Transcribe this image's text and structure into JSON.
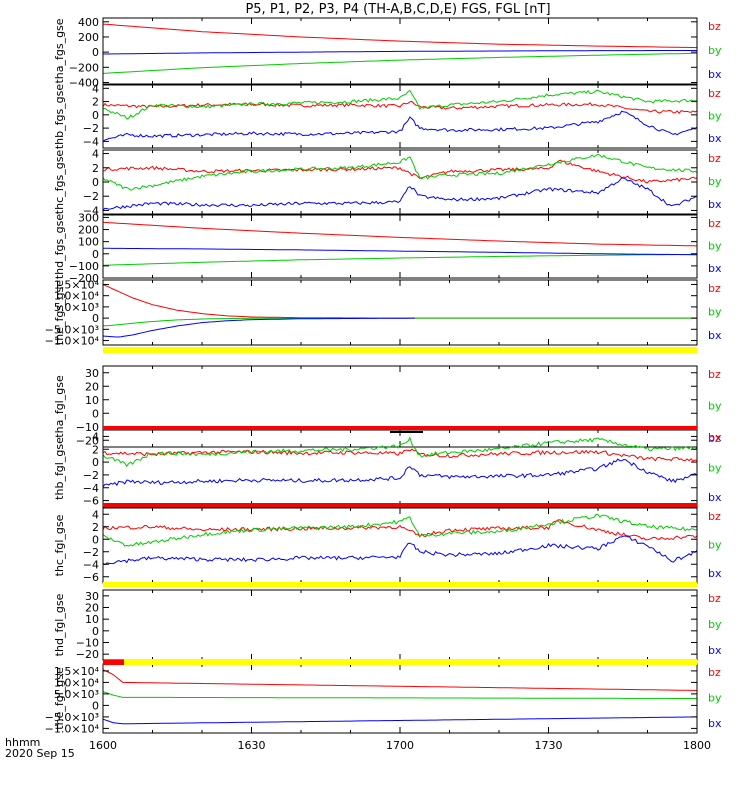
{
  "title": "P5, P1, P2, P3, P4 (TH-A,B,C,D,E) FGS, FGL [nT]",
  "footer": {
    "xunit": "hhmm",
    "date": "2020 Sep 15"
  },
  "x_ticks": [
    "1600",
    "1630",
    "1700",
    "1730",
    "1800"
  ],
  "colors": {
    "bx": "#0000ff",
    "by": "#00cc00",
    "bz": "#ff0000",
    "frame": "#000000",
    "flag_yellow": "#ffff00",
    "flag_red": "#ff0000"
  },
  "chart_data": [
    {
      "type": "line",
      "ylabel": "tha_fgs_gse",
      "xlim": [
        0,
        120
      ],
      "ylim": [
        -420,
        450
      ],
      "yticks": [
        "400",
        "200",
        "0",
        "−200",
        "−400"
      ],
      "ytick_values": [
        400,
        200,
        0,
        -200,
        -400
      ],
      "legend": [
        "bz",
        "by",
        "bx"
      ],
      "legend_placement": "right",
      "series": [
        {
          "name": "bz",
          "x": [
            0,
            20,
            40,
            60,
            80,
            100,
            120
          ],
          "values": [
            370,
            270,
            200,
            145,
            105,
            80,
            60
          ]
        },
        {
          "name": "by",
          "x": [
            0,
            20,
            40,
            60,
            80,
            100,
            120
          ],
          "values": [
            -280,
            -205,
            -150,
            -105,
            -70,
            -40,
            -15
          ]
        },
        {
          "name": "bx",
          "x": [
            0,
            20,
            40,
            60,
            80,
            100,
            120
          ],
          "values": [
            -25,
            -10,
            0,
            10,
            15,
            20,
            22
          ]
        }
      ]
    },
    {
      "type": "line",
      "ylabel": "thb_fgs_gse",
      "xlim": [
        0,
        120
      ],
      "ylim": [
        -5,
        4.5
      ],
      "yticks": [
        "4",
        "2",
        "0",
        "−2",
        "−4"
      ],
      "ytick_values": [
        4,
        2,
        0,
        -2,
        -4
      ],
      "legend": [
        "bz",
        "by",
        "bx"
      ],
      "legend_placement": "right",
      "series": [
        {
          "name": "bz",
          "x": [
            0,
            10,
            20,
            30,
            40,
            50,
            60,
            62,
            64,
            70,
            80,
            90,
            100,
            110,
            120
          ],
          "values": [
            1.5,
            1.2,
            1.5,
            1.6,
            1.4,
            1.5,
            1.3,
            2.0,
            1.2,
            1.0,
            1.3,
            1.5,
            1.6,
            0.5,
            0.4
          ]
        },
        {
          "name": "by",
          "x": [
            0,
            5,
            10,
            20,
            30,
            40,
            50,
            60,
            62,
            64,
            70,
            80,
            90,
            100,
            110,
            120
          ],
          "values": [
            1.0,
            -0.5,
            1.5,
            1.2,
            1.6,
            1.8,
            2.0,
            2.5,
            3.5,
            1.0,
            1.5,
            2.0,
            3.0,
            3.5,
            2.0,
            2.2
          ]
        },
        {
          "name": "bx",
          "x": [
            0,
            5,
            10,
            20,
            30,
            40,
            50,
            60,
            62,
            64,
            70,
            80,
            90,
            100,
            105,
            110,
            115,
            120
          ],
          "values": [
            -3.8,
            -3.0,
            -3.2,
            -3.0,
            -2.8,
            -2.9,
            -2.8,
            -2.5,
            -0.5,
            -2.0,
            -2.3,
            -2.2,
            -2.0,
            -1.0,
            0.5,
            -1.5,
            -3.0,
            -2.0
          ]
        }
      ]
    },
    {
      "type": "line",
      "ylabel": "thc_fgs_gse",
      "xlim": [
        0,
        120
      ],
      "ylim": [
        -4.5,
        4.5
      ],
      "yticks": [
        "4",
        "2",
        "0",
        "−2",
        "−4"
      ],
      "ytick_values": [
        4,
        2,
        0,
        -2,
        -4
      ],
      "legend": [
        "bz",
        "by",
        "bx"
      ],
      "legend_placement": "right",
      "series": [
        {
          "name": "bz",
          "x": [
            0,
            10,
            20,
            30,
            40,
            50,
            60,
            64,
            70,
            80,
            90,
            92,
            100,
            110,
            120
          ],
          "values": [
            1.8,
            2.0,
            1.5,
            1.6,
            1.7,
            1.8,
            2.0,
            0.5,
            1.5,
            1.7,
            1.9,
            3.0,
            1.5,
            0.0,
            0.5
          ]
        },
        {
          "name": "by",
          "x": [
            0,
            5,
            10,
            20,
            30,
            40,
            50,
            60,
            62,
            64,
            70,
            80,
            90,
            100,
            110,
            120
          ],
          "values": [
            0.5,
            -1.0,
            -0.5,
            0.8,
            1.5,
            1.8,
            2.0,
            2.8,
            3.5,
            0.5,
            1.0,
            1.2,
            2.5,
            3.8,
            2.0,
            1.5
          ]
        },
        {
          "name": "bx",
          "x": [
            0,
            10,
            20,
            30,
            40,
            50,
            60,
            62,
            64,
            70,
            80,
            90,
            100,
            105,
            110,
            115,
            120
          ],
          "values": [
            -3.8,
            -3.0,
            -3.2,
            -3.3,
            -3.0,
            -3.0,
            -2.8,
            -0.5,
            -2.0,
            -2.5,
            -2.3,
            -1.0,
            -1.5,
            0.5,
            -1.0,
            -3.5,
            -2.0
          ]
        }
      ]
    },
    {
      "type": "line",
      "ylabel": "thd_fgs_gse",
      "xlim": [
        0,
        120
      ],
      "ylim": [
        -200,
        320
      ],
      "yticks": [
        "300",
        "200",
        "100",
        "0",
        "−100",
        "−200"
      ],
      "ytick_values": [
        300,
        200,
        100,
        0,
        -100,
        -200
      ],
      "legend": [
        "bz",
        "by",
        "bx"
      ],
      "legend_placement": "right",
      "series": [
        {
          "name": "bz",
          "x": [
            0,
            20,
            40,
            60,
            80,
            100,
            120
          ],
          "values": [
            260,
            210,
            170,
            135,
            105,
            80,
            65
          ]
        },
        {
          "name": "by",
          "x": [
            0,
            20,
            40,
            60,
            80,
            100,
            120
          ],
          "values": [
            -95,
            -70,
            -50,
            -35,
            -22,
            -12,
            -5
          ]
        },
        {
          "name": "bx",
          "x": [
            0,
            20,
            40,
            60,
            80,
            100,
            120
          ],
          "values": [
            45,
            40,
            32,
            22,
            12,
            0,
            -8
          ]
        }
      ]
    },
    {
      "type": "line",
      "ylabel": "the_fgs_gse",
      "xlim": [
        0,
        120
      ],
      "ylim": [
        -12000,
        17000
      ],
      "yticks": [
        "1.5×10⁴",
        "1.0×10⁴",
        "5.0×10³",
        "0",
        "−5.0×10³",
        "−1.0×10⁴"
      ],
      "ytick_values": [
        15000,
        10000,
        5000,
        0,
        -5000,
        -10000
      ],
      "legend": [
        "bz",
        "by",
        "bx"
      ],
      "legend_placement": "right",
      "series": [
        {
          "name": "bz",
          "x": [
            0,
            3,
            6,
            10,
            15,
            20,
            25,
            30,
            40,
            50,
            60,
            120
          ],
          "values": [
            15000,
            12000,
            9000,
            6000,
            3500,
            2000,
            1000,
            500,
            200,
            100,
            0,
            0
          ]
        },
        {
          "name": "by",
          "x": [
            0,
            3,
            6,
            10,
            15,
            20,
            25,
            30,
            40,
            60,
            120
          ],
          "values": [
            -3500,
            -3000,
            -2300,
            -1500,
            -800,
            -400,
            -200,
            -100,
            -50,
            0,
            0
          ]
        },
        {
          "name": "bx",
          "x": [
            0,
            3,
            6,
            10,
            15,
            20,
            25,
            30,
            40,
            60,
            63
          ],
          "values": [
            -8000,
            -8500,
            -7500,
            -5500,
            -3500,
            -2000,
            -1200,
            -700,
            -300,
            -50,
            0
          ]
        }
      ]
    },
    {
      "type": "line",
      "ylabel": "tha_fgl_gse",
      "xlim": [
        0,
        120
      ],
      "ylim": [
        -25,
        35
      ],
      "yticks": [
        "30",
        "20",
        "10",
        "0",
        "−10",
        "−20"
      ],
      "ytick_values": [
        30,
        20,
        10,
        0,
        -10,
        -20
      ],
      "legend": [
        "bz",
        "by",
        "bx"
      ],
      "legend_placement": "right",
      "series": []
    },
    {
      "type": "line",
      "ylabel": "thb_fgl_gse",
      "xlim": [
        0,
        120
      ],
      "ylim": [
        -7,
        5
      ],
      "yticks": [
        "4",
        "2",
        "0",
        "−2",
        "−4",
        "−6"
      ],
      "ytick_values": [
        4,
        2,
        0,
        -2,
        -4,
        -6
      ],
      "legend": [
        "bz",
        "by",
        "bx"
      ],
      "legend_placement": "right",
      "series": [
        {
          "name": "bz",
          "x": [
            0,
            10,
            20,
            30,
            40,
            50,
            60,
            62,
            64,
            70,
            80,
            90,
            100,
            110,
            120
          ],
          "values": [
            1.5,
            1.2,
            1.5,
            1.6,
            1.4,
            1.5,
            1.3,
            2.0,
            1.2,
            1.0,
            1.3,
            1.5,
            1.6,
            0.5,
            0.4
          ]
        },
        {
          "name": "by",
          "x": [
            0,
            5,
            10,
            20,
            30,
            40,
            50,
            60,
            62,
            64,
            70,
            80,
            90,
            100,
            110,
            120
          ],
          "values": [
            1.0,
            -0.5,
            1.5,
            1.2,
            1.6,
            1.8,
            2.0,
            2.5,
            3.5,
            1.0,
            1.5,
            2.0,
            3.0,
            3.5,
            2.0,
            2.2
          ]
        },
        {
          "name": "bx",
          "x": [
            0,
            5,
            10,
            20,
            30,
            40,
            50,
            60,
            62,
            64,
            70,
            80,
            90,
            100,
            105,
            110,
            115,
            120
          ],
          "values": [
            -3.8,
            -3.0,
            -3.2,
            -3.0,
            -2.8,
            -2.9,
            -2.8,
            -2.5,
            -0.5,
            -2.0,
            -2.3,
            -2.2,
            -2.0,
            -1.0,
            0.5,
            -1.5,
            -3.0,
            -2.0
          ]
        }
      ]
    },
    {
      "type": "line",
      "ylabel": "thc_fgl_gse",
      "xlim": [
        0,
        120
      ],
      "ylim": [
        -7,
        5
      ],
      "yticks": [
        "4",
        "2",
        "0",
        "−2",
        "−4",
        "−6"
      ],
      "ytick_values": [
        4,
        2,
        0,
        -2,
        -4,
        -6
      ],
      "legend": [
        "bz",
        "by",
        "bx"
      ],
      "legend_placement": "right",
      "series": [
        {
          "name": "bz",
          "x": [
            0,
            10,
            20,
            30,
            40,
            50,
            60,
            64,
            70,
            80,
            90,
            92,
            100,
            110,
            120
          ],
          "values": [
            1.8,
            2.0,
            1.5,
            1.6,
            1.7,
            1.8,
            2.0,
            0.5,
            1.5,
            1.7,
            1.9,
            3.0,
            1.5,
            0.0,
            0.5
          ]
        },
        {
          "name": "by",
          "x": [
            0,
            5,
            10,
            20,
            30,
            40,
            50,
            60,
            62,
            64,
            70,
            80,
            90,
            100,
            110,
            120
          ],
          "values": [
            0.5,
            -1.0,
            -0.5,
            0.8,
            1.5,
            1.8,
            2.0,
            2.8,
            3.5,
            0.5,
            1.0,
            1.2,
            2.5,
            3.8,
            2.0,
            1.5
          ]
        },
        {
          "name": "bx",
          "x": [
            0,
            10,
            20,
            30,
            40,
            50,
            60,
            62,
            64,
            70,
            80,
            90,
            100,
            105,
            110,
            115,
            120
          ],
          "values": [
            -3.8,
            -3.0,
            -3.2,
            -3.3,
            -3.0,
            -3.0,
            -2.8,
            -0.5,
            -2.0,
            -2.5,
            -2.3,
            -1.0,
            -1.5,
            0.5,
            -1.0,
            -3.5,
            -2.0
          ]
        }
      ]
    },
    {
      "type": "line",
      "ylabel": "thd_fgl_gse",
      "xlim": [
        0,
        120
      ],
      "ylim": [
        -25,
        35
      ],
      "yticks": [
        "30",
        "20",
        "10",
        "0",
        "−10",
        "−20"
      ],
      "ytick_values": [
        30,
        20,
        10,
        0,
        -10,
        -20
      ],
      "legend": [
        "bz",
        "by",
        "bx"
      ],
      "legend_placement": "right",
      "series": []
    },
    {
      "type": "line",
      "ylabel": "the_fgl_gse",
      "xlim": [
        0,
        120
      ],
      "ylim": [
        -12000,
        18000
      ],
      "yticks": [
        "1.5×10⁴",
        "1.0×10⁴",
        "5.0×10³",
        "0",
        "−5.0×10³",
        "−1.0×10⁴"
      ],
      "ytick_values": [
        15000,
        10000,
        5000,
        0,
        -5000,
        -10000
      ],
      "legend": [
        "bz",
        "by",
        "bx"
      ],
      "legend_placement": "right",
      "series": [
        {
          "name": "bz",
          "x": [
            0,
            2,
            4,
            120
          ],
          "values": [
            15500,
            13500,
            10000,
            6500
          ]
        },
        {
          "name": "by",
          "x": [
            0,
            2,
            4,
            120
          ],
          "values": [
            6000,
            4500,
            3500,
            3000
          ]
        },
        {
          "name": "bx",
          "x": [
            0,
            2,
            4,
            120
          ],
          "values": [
            -6000,
            -7500,
            -8000,
            -5000
          ]
        }
      ]
    }
  ]
}
